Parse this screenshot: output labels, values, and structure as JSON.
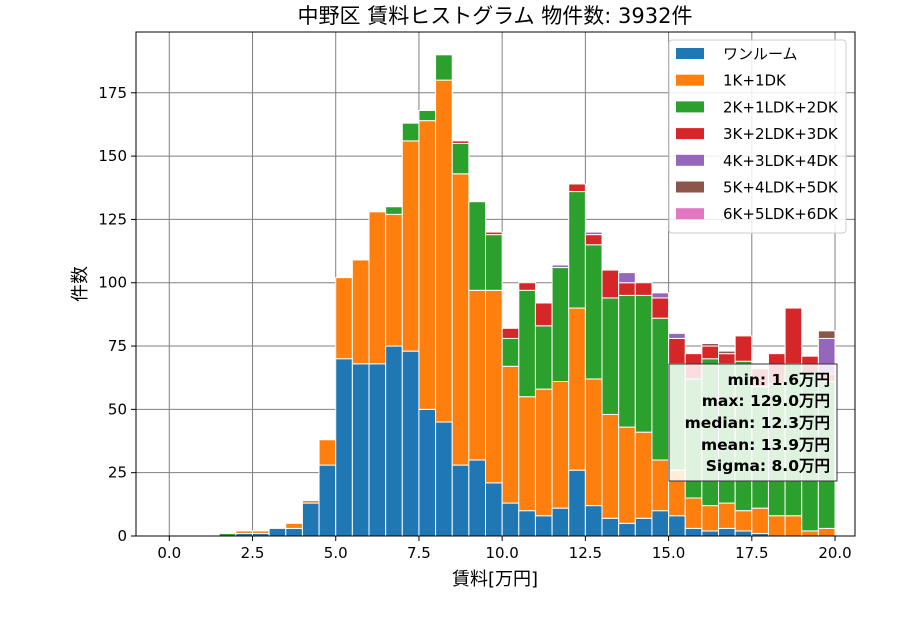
{
  "chart_data": {
    "type": "bar",
    "stacked": true,
    "title": "中野区 賃料ヒストグラム  物件数: 3932件",
    "xlabel": "賃料[万円]",
    "ylabel": "件数",
    "xlim": [
      -1.0,
      20.6
    ],
    "ylim": [
      0,
      199
    ],
    "xticks": [
      0.0,
      2.5,
      5.0,
      7.5,
      10.0,
      12.5,
      15.0,
      17.5,
      20.0
    ],
    "xtick_labels": [
      "0.0",
      "2.5",
      "5.0",
      "7.5",
      "10.0",
      "12.5",
      "15.0",
      "17.5",
      "20.0"
    ],
    "yticks": [
      0,
      25,
      50,
      75,
      100,
      125,
      150,
      175
    ],
    "ytick_labels": [
      "0",
      "25",
      "50",
      "75",
      "100",
      "125",
      "150",
      "175"
    ],
    "grid": true,
    "legend_position": "top-right",
    "bin_width": 0.5,
    "bin_starts": [
      1.5,
      2.0,
      2.5,
      3.0,
      3.5,
      4.0,
      4.5,
      5.0,
      5.5,
      6.0,
      6.5,
      7.0,
      7.5,
      8.0,
      8.5,
      9.0,
      9.5,
      10.0,
      10.5,
      11.0,
      11.5,
      12.0,
      12.5,
      13.0,
      13.5,
      14.0,
      14.5,
      15.0,
      15.5,
      16.0,
      16.5,
      17.0,
      17.5,
      18.0,
      18.5,
      19.0,
      19.5
    ],
    "series": [
      {
        "name": "ワンルーム",
        "color": "#1f77b4",
        "values": [
          0,
          1,
          1,
          3,
          3,
          13,
          28,
          70,
          68,
          68,
          75,
          73,
          50,
          45,
          28,
          30,
          21,
          13,
          10,
          8,
          11,
          26,
          12,
          7,
          5,
          7,
          10,
          8,
          3,
          2,
          3,
          2,
          1,
          0,
          0,
          0,
          0
        ]
      },
      {
        "name": "1K+1DK",
        "color": "#ff7f0e",
        "values": [
          0,
          1,
          1,
          0,
          2,
          1,
          10,
          32,
          41,
          60,
          52,
          83,
          114,
          135,
          115,
          67,
          76,
          54,
          45,
          50,
          50,
          64,
          50,
          41,
          38,
          34,
          20,
          18,
          12,
          10,
          10,
          8,
          10,
          8,
          8,
          2,
          3
        ]
      },
      {
        "name": "2K+1LDK+2DK",
        "color": "#2ca02c",
        "values": [
          1,
          0,
          0,
          0,
          0,
          0,
          0,
          0,
          0,
          0,
          3,
          7,
          4,
          10,
          12,
          35,
          22,
          11,
          42,
          25,
          45,
          46,
          53,
          46,
          52,
          54,
          56,
          42,
          47,
          58,
          55,
          59,
          48,
          52,
          60,
          62,
          58
        ]
      },
      {
        "name": "3K+2LDK+3DK",
        "color": "#d62728",
        "values": [
          0,
          0,
          0,
          0,
          0,
          0,
          0,
          0,
          0,
          0,
          0,
          0,
          0,
          0,
          1,
          0,
          1,
          4,
          3,
          9,
          0,
          3,
          4,
          11,
          5,
          5,
          8,
          10,
          10,
          5,
          4,
          10,
          7,
          12,
          22,
          7,
          3
        ]
      },
      {
        "name": "4K+3LDK+4DK",
        "color": "#9467bd",
        "values": [
          0,
          0,
          0,
          0,
          0,
          0,
          0,
          0,
          0,
          0,
          0,
          0,
          0,
          0,
          0,
          0,
          0,
          0,
          0,
          0,
          1,
          0,
          1,
          0,
          4,
          0,
          2,
          2,
          0,
          0,
          0,
          0,
          0,
          0,
          0,
          0,
          14
        ]
      },
      {
        "name": "5K+4LDK+5DK",
        "color": "#8c564b",
        "values": [
          0,
          0,
          0,
          0,
          0,
          0,
          0,
          0,
          0,
          0,
          0,
          0,
          0,
          0,
          0,
          0,
          0,
          0,
          0,
          0,
          0,
          0,
          0,
          0,
          0,
          0,
          0,
          0,
          0,
          1,
          1,
          0,
          0,
          0,
          0,
          0,
          3
        ]
      },
      {
        "name": "6K+5LDK+6DK",
        "color": "#e377c2",
        "values": [
          0,
          0,
          0,
          0,
          0,
          0,
          0,
          0,
          0,
          0,
          0,
          0,
          0,
          0,
          0,
          0,
          0,
          0,
          0,
          0,
          0,
          0,
          0,
          0,
          0,
          0,
          0,
          0,
          0,
          0,
          0,
          0,
          0,
          0,
          0,
          0,
          0
        ]
      }
    ],
    "annotations": {
      "stats": [
        "min: 1.6万円",
        "max: 129.0万円",
        "median: 12.3万円",
        "mean: 13.9万円",
        "Sigma: 8.0万円"
      ]
    }
  }
}
